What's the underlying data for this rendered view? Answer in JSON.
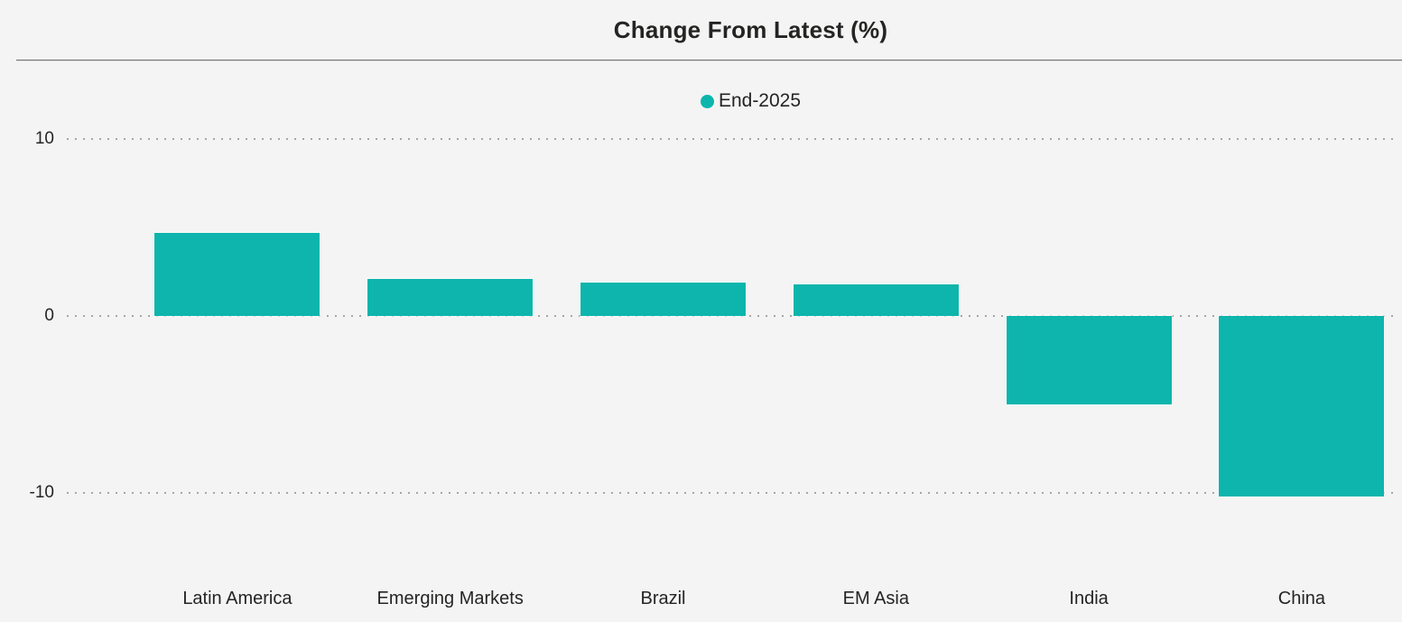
{
  "header": {
    "title": "Change From Latest (%)"
  },
  "legend": {
    "items": [
      {
        "label": "End-2025",
        "color": "#0db5ac"
      }
    ]
  },
  "colors": {
    "background": "#f4f4f4",
    "bar": "#0db5ac",
    "text": "#252423",
    "gridline": "#a6a6a6",
    "divider": "#747474"
  },
  "chart_data": {
    "type": "bar",
    "title": "Change From Latest (%)",
    "categories": [
      "Latin America",
      "Emerging Markets",
      "Brazil",
      "EM Asia",
      "India",
      "China"
    ],
    "series": [
      {
        "name": "End-2025",
        "color": "#0db5ac",
        "values": [
          4.7,
          2.1,
          1.9,
          1.8,
          -5.0,
          -10.2
        ]
      }
    ],
    "xlabel": "",
    "ylabel": "",
    "yticks": [
      10,
      0,
      -10
    ],
    "ylim": [
      -12,
      12
    ],
    "grid": "dotted-horizontal",
    "legend_position": "top-center"
  }
}
